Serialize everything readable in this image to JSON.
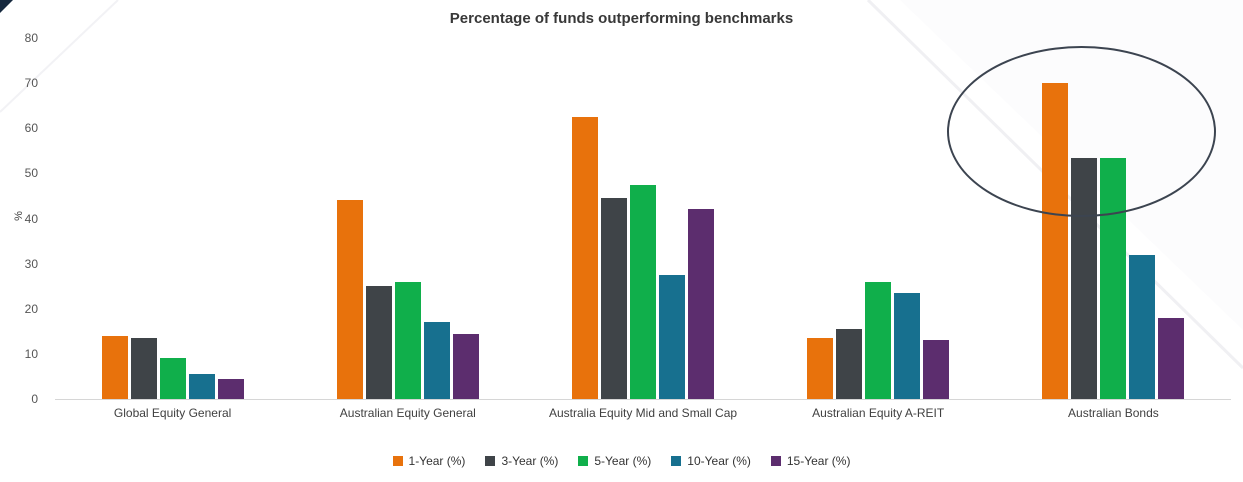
{
  "chart_data": {
    "type": "bar",
    "title": "Percentage of funds outperforming benchmarks",
    "xlabel": "",
    "ylabel": "%",
    "ylim": [
      0,
      80
    ],
    "ytick_step": 10,
    "grid": false,
    "legend_position": "bottom",
    "categories": [
      "Global Equity General",
      "Australian Equity General",
      "Australia Equity Mid and Small Cap",
      "Australian Equity A-REIT",
      "Australian Bonds"
    ],
    "series": [
      {
        "name": "1-Year (%)",
        "color": "#E8720C",
        "values": [
          14,
          44,
          62.5,
          13.5,
          70
        ]
      },
      {
        "name": "3-Year (%)",
        "color": "#3F4448",
        "values": [
          13.5,
          25,
          44.5,
          15.5,
          53.5
        ]
      },
      {
        "name": "5-Year (%)",
        "color": "#10AF4B",
        "values": [
          9,
          26,
          47.5,
          26,
          53.5
        ]
      },
      {
        "name": "10-Year (%)",
        "color": "#17708F",
        "values": [
          5.5,
          17,
          27.5,
          23.5,
          32
        ]
      },
      {
        "name": "15-Year (%)",
        "color": "#5C2D6E",
        "values": [
          4.5,
          14.5,
          42,
          13,
          18
        ]
      }
    ],
    "annotation": {
      "type": "ellipse",
      "target_category": "Australian Bonds",
      "color": "#3c4450"
    }
  }
}
